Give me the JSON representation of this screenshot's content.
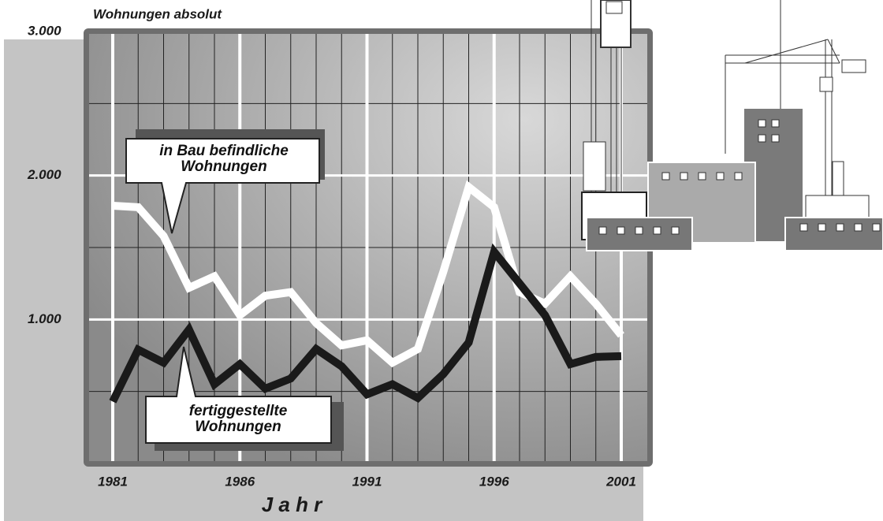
{
  "chart_data": {
    "type": "line",
    "y_label": "Wohnungen absolut",
    "x_label": "J a h r",
    "x": [
      1981,
      1982,
      1983,
      1984,
      1985,
      1986,
      1987,
      1988,
      1989,
      1990,
      1991,
      1992,
      1993,
      1994,
      1995,
      1996,
      1997,
      1998,
      1999,
      2000,
      2001
    ],
    "series": [
      {
        "name": "in Bau befindliche Wohnungen",
        "color": "#ffffff",
        "values": [
          1790,
          1780,
          1580,
          1220,
          1300,
          1030,
          1165,
          1190,
          975,
          820,
          855,
          700,
          795,
          1330,
          1920,
          1780,
          1190,
          1110,
          1300,
          1110,
          890
        ]
      },
      {
        "name": "fertiggestellte Wohnungen",
        "color": "#1a1a1a",
        "values": [
          430,
          790,
          700,
          930,
          550,
          690,
          520,
          590,
          795,
          675,
          480,
          550,
          455,
          620,
          840,
          1470,
          1250,
          1030,
          690,
          740,
          745
        ]
      }
    ],
    "xlim": [
      1981,
      2001
    ],
    "xticks": [
      1981,
      1986,
      1991,
      1996,
      2001
    ],
    "ylim": [
      0,
      3000
    ],
    "yticks": [
      {
        "value": 1000,
        "label": "1.000"
      },
      {
        "value": 2000,
        "label": "2.000"
      },
      {
        "value": 3000,
        "label": "3.000"
      }
    ],
    "grid": true
  }
}
